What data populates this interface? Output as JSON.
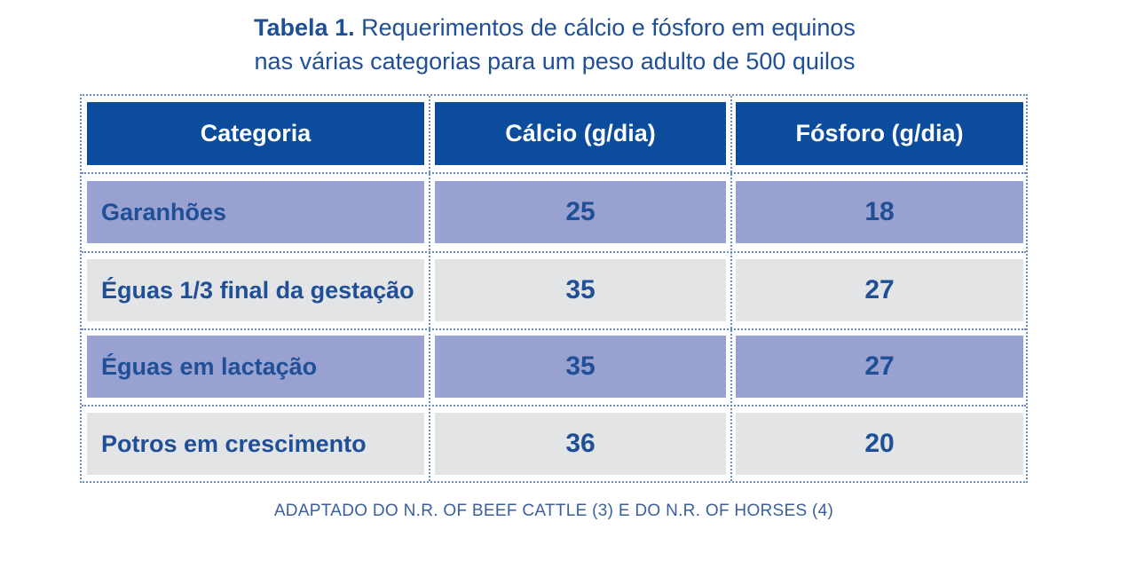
{
  "caption": {
    "label": "Tabela 1.",
    "line1": "Requerimentos de cálcio e fósforo em equinos",
    "line2": "nas várias categorias para um peso adulto de 500 quilos"
  },
  "table": {
    "headers": [
      "Categoria",
      "Cálcio (g/dia)",
      "Fósforo (g/dia)"
    ],
    "rows": [
      {
        "categoria": "Garanhões",
        "calcio": "25",
        "fosforo": "18"
      },
      {
        "categoria": "Éguas 1/3 final da gestação",
        "calcio": "35",
        "fosforo": "27"
      },
      {
        "categoria": "Éguas em lactação",
        "calcio": "35",
        "fosforo": "27"
      },
      {
        "categoria": "Potros em crescimento",
        "calcio": "36",
        "fosforo": "20"
      }
    ]
  },
  "source": "ADAPTADO DO N.R. OF BEEF CATTLE (3) E DO N.R. OF HORSES (4)",
  "colors": {
    "header_bg": "#0b4d9c",
    "row_purple": "#98a1cf",
    "row_grey": "#e3e4e6",
    "text_blue": "#1f4f96"
  }
}
